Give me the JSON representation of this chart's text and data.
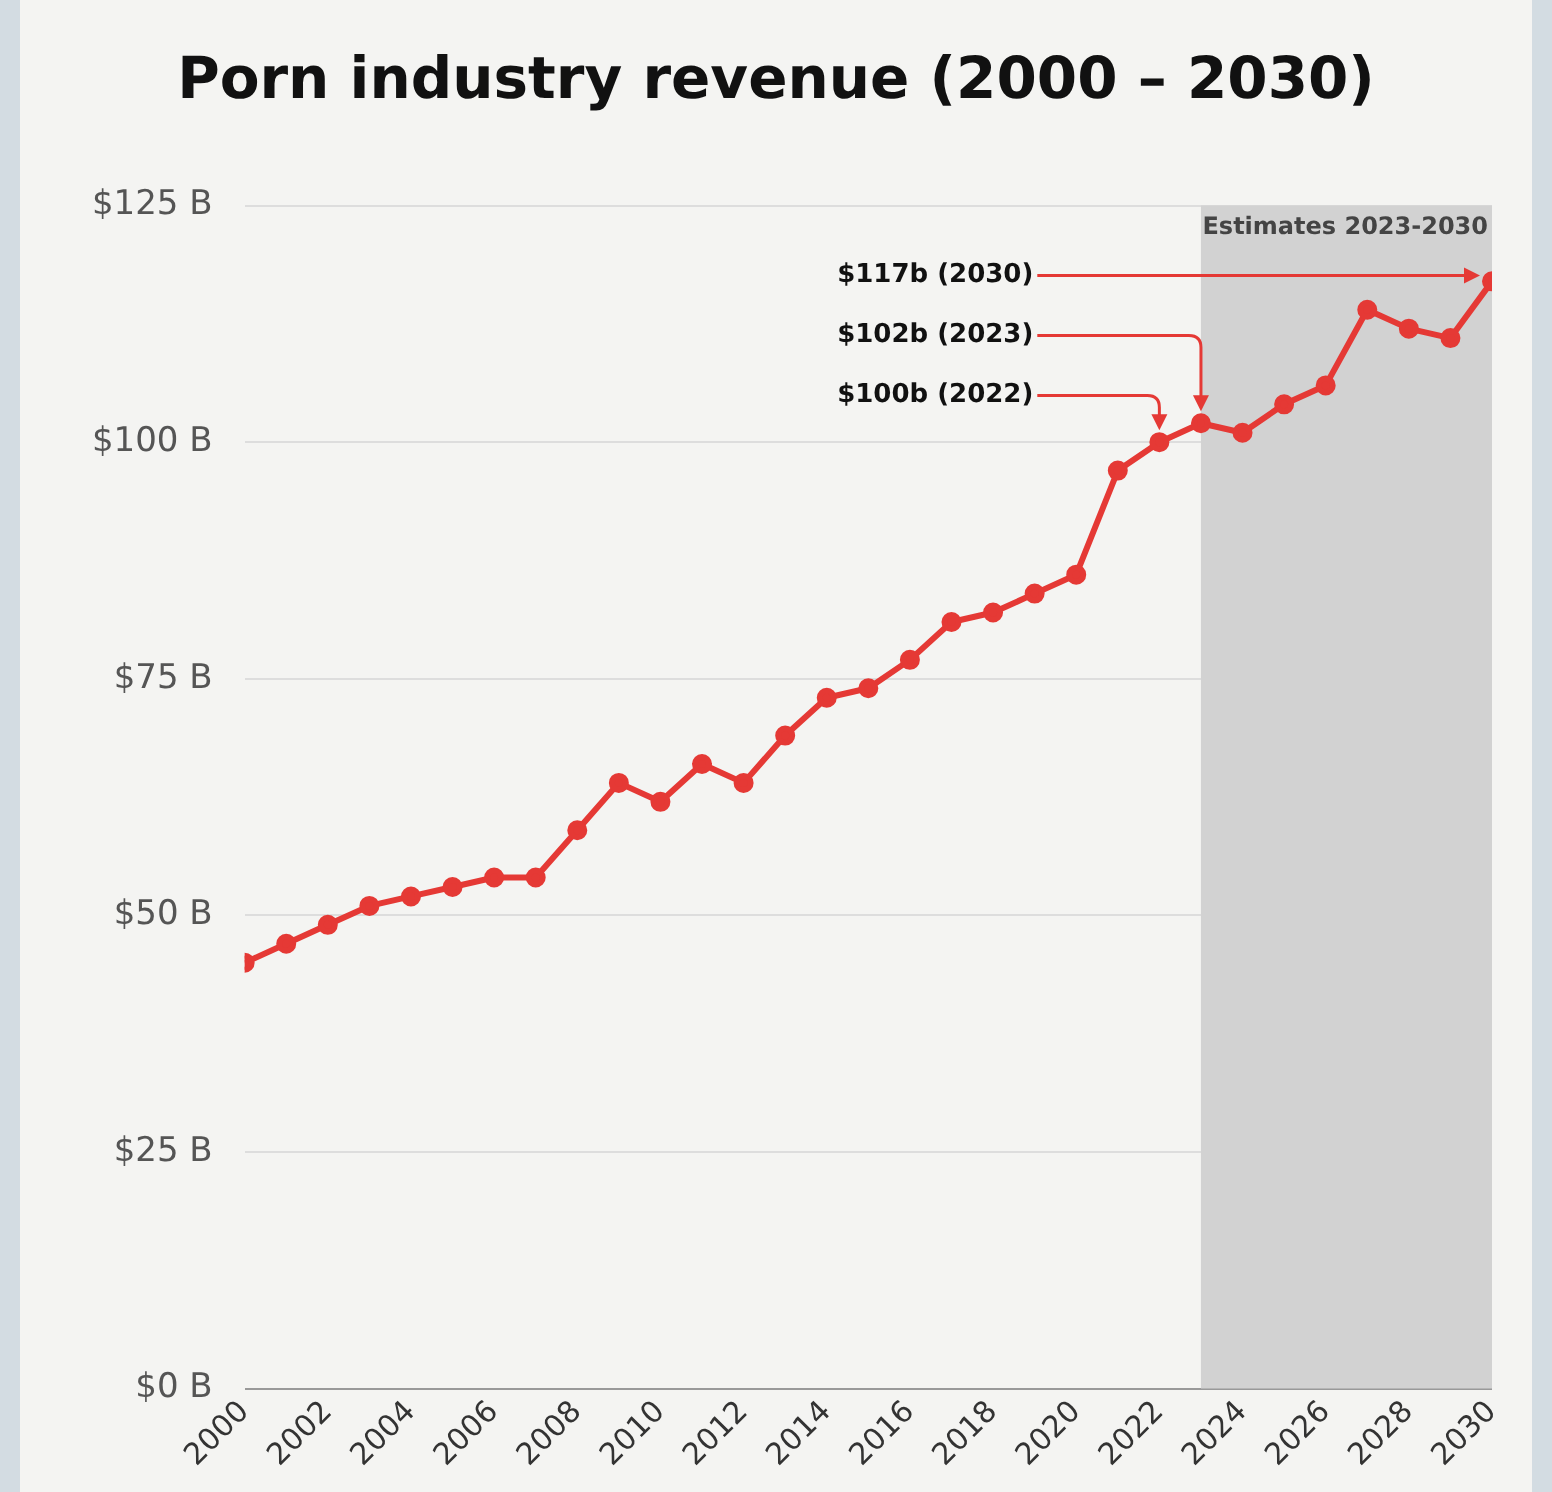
{
  "chart_data": {
    "type": "line",
    "title": "Porn industry revenue (2000 – 2030)",
    "x": [
      2000,
      2001,
      2002,
      2003,
      2004,
      2005,
      2006,
      2007,
      2008,
      2009,
      2010,
      2011,
      2012,
      2013,
      2014,
      2015,
      2016,
      2017,
      2018,
      2019,
      2020,
      2021,
      2022,
      2023,
      2024,
      2025,
      2026,
      2027,
      2028,
      2029,
      2030
    ],
    "series": [
      {
        "color": "#e53935",
        "values": [
          45,
          47,
          49,
          51,
          52,
          53,
          54,
          54,
          59,
          64,
          62,
          66,
          64,
          69,
          73,
          74,
          77,
          81,
          82,
          84,
          86,
          97,
          100,
          102,
          101,
          104,
          106,
          114,
          112,
          111,
          117
        ]
      }
    ],
    "xlim": [
      2000,
      2030
    ],
    "xticks": [
      2000,
      2002,
      2004,
      2006,
      2008,
      2010,
      2012,
      2014,
      2016,
      2018,
      2020,
      2022,
      2024,
      2026,
      2028,
      2030
    ],
    "ylim": [
      0,
      125
    ],
    "yticks": [
      {
        "value": 0,
        "label": "$0 B"
      },
      {
        "value": 25,
        "label": "$25 B"
      },
      {
        "value": 50,
        "label": "$50 B"
      },
      {
        "value": 75,
        "label": "$75 B"
      },
      {
        "value": 100,
        "label": "$100 B"
      },
      {
        "value": 125,
        "label": "$125 B"
      }
    ],
    "bands": [
      {
        "axis": "x",
        "from": 2023,
        "to": 2030,
        "label": "Estimates 2023-2030",
        "color": "#d2d2d2"
      }
    ],
    "annotations": [
      {
        "text": "$117b (2030)",
        "x": 2030,
        "y": 117
      },
      {
        "text": "$102b (2023)",
        "x": 2023,
        "y": 102
      },
      {
        "text": "$100b (2022)",
        "x": 2022,
        "y": 100
      }
    ],
    "grid": "y",
    "marker": "circle",
    "line_style": "solid",
    "legend": false
  }
}
